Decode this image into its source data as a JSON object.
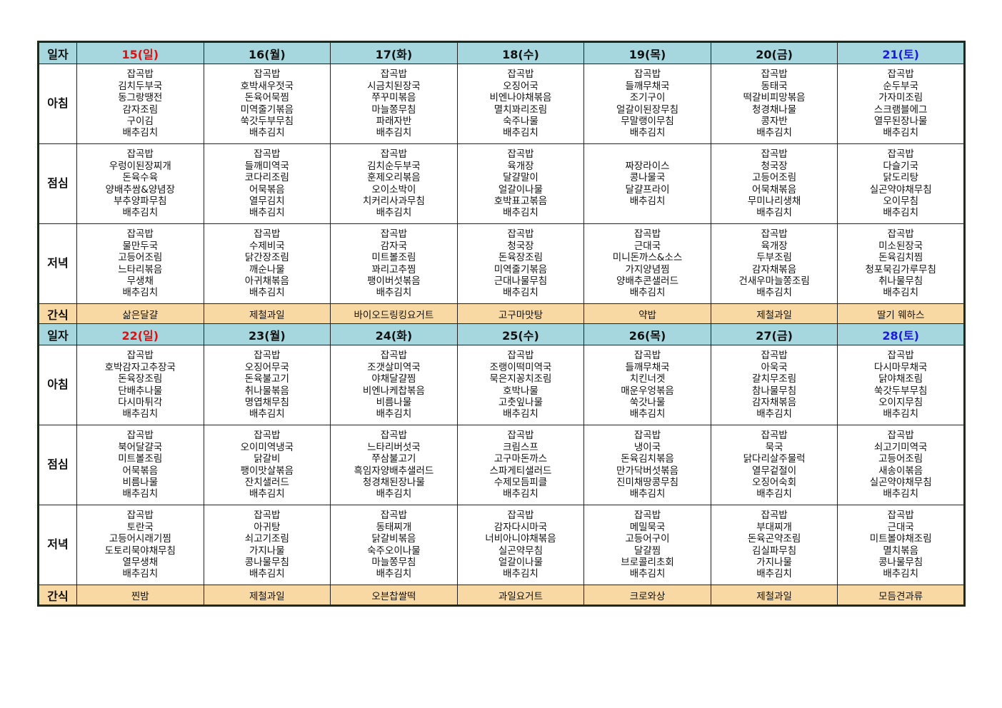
{
  "labels": {
    "date": "일자",
    "breakfast": "아침",
    "lunch": "점심",
    "dinner": "저녁",
    "snack": "간식"
  },
  "colors": {
    "sunday": "#e01010",
    "saturday": "#1a1ae0",
    "header_bg": "#a6d6de",
    "snack_bg": "#f9d9a3",
    "border": "#1c2b1c"
  },
  "weeks": [
    {
      "days": [
        "15(일)",
        "16(월)",
        "17(화)",
        "18(수)",
        "19(목)",
        "20(금)",
        "21(토)"
      ],
      "breakfast": [
        [
          "잡곡밥",
          "김치두부국",
          "동그랑땡전",
          "감자조림",
          "구이김",
          "배추김치"
        ],
        [
          "잡곡밥",
          "호박새우젓국",
          "돈육어묵찜",
          "미역줄기볶음",
          "쑥갓두부무침",
          "배추김치"
        ],
        [
          "잡곡밥",
          "시금치된장국",
          "쭈꾸미볶음",
          "마늘쫑무침",
          "파래자반",
          "배추김치"
        ],
        [
          "잡곡밥",
          "오징어국",
          "비엔나야채볶음",
          "멸치꽈리조림",
          "숙주나물",
          "배추김치"
        ],
        [
          "잡곡밥",
          "들깨무채국",
          "조기구이",
          "얼갈이된장무침",
          "무말랭이무침",
          "배추김치"
        ],
        [
          "잡곡밥",
          "동태국",
          "떡갈비피망볶음",
          "청경채나물",
          "콩자반",
          "배추김치"
        ],
        [
          "잡곡밥",
          "순두부국",
          "가자미조림",
          "스크램블에그",
          "열무된장나물",
          "배추김치"
        ]
      ],
      "lunch": [
        [
          "잡곡밥",
          "우렁이된장찌개",
          "돈육수육",
          "양배추쌈&양념장",
          "부추양파무침",
          "배추김치"
        ],
        [
          "잡곡밥",
          "들깨미역국",
          "코다리조림",
          "어묵볶음",
          "열무김치",
          "배추김치"
        ],
        [
          "잡곡밥",
          "김치순두부국",
          "훈제오리볶음",
          "오이소박이",
          "치커리사과무침",
          "배추김치"
        ],
        [
          "잡곡밥",
          "육개장",
          "달걀말이",
          "얼갈이나물",
          "호박표고볶음",
          "배추김치"
        ],
        [
          "짜장라이스",
          "콩나물국",
          "달걀프라이",
          "배추김치"
        ],
        [
          "잡곡밥",
          "청국장",
          "고등어조림",
          "어묵채볶음",
          "무미나리생채",
          "배추김치"
        ],
        [
          "잡곡밥",
          "다슬기국",
          "닭도리탕",
          "실곤약야채무침",
          "오이무침",
          "배추김치"
        ]
      ],
      "dinner": [
        [
          "잡곡밥",
          "물만두국",
          "고등어조림",
          "느타리볶음",
          "무생채",
          "배추김치"
        ],
        [
          "잡곡밥",
          "수제비국",
          "닭간장조림",
          "깨순나물",
          "아귀채볶음",
          "배추김치"
        ],
        [
          "잡곡밥",
          "감자국",
          "미트볼조림",
          "꽈리고추찜",
          "팽이버섯볶음",
          "배추김치"
        ],
        [
          "잡곡밥",
          "청국장",
          "돈육장조림",
          "미역줄기볶음",
          "근대나물무침",
          "배추김치"
        ],
        [
          "잡곡밥",
          "근대국",
          "미니돈까스&소스",
          "가지양념찜",
          "양배추콘샐러드",
          "배추김치"
        ],
        [
          "잡곡밥",
          "육개장",
          "두부조림",
          "감자채볶음",
          "건새우마늘쫑조림",
          "배추김치"
        ],
        [
          "잡곡밥",
          "미소된장국",
          "돈육김치찜",
          "청포묵김가루무침",
          "취나물무침",
          "배추김치"
        ]
      ],
      "snack": [
        "삶은달걀",
        "제철과일",
        "바이오드링킹요거트",
        "고구마맛탕",
        "약밥",
        "제철과일",
        "딸기 웨하스"
      ]
    },
    {
      "days": [
        "22(일)",
        "23(월)",
        "24(화)",
        "25(수)",
        "26(목)",
        "27(금)",
        "28(토)"
      ],
      "breakfast": [
        [
          "잡곡밥",
          "호박감자고추장국",
          "돈육장조림",
          "단배추나물",
          "다시마튀각",
          "배추김치"
        ],
        [
          "잡곡밥",
          "오징어무국",
          "돈육불고기",
          "취나물볶음",
          "명엽채무침",
          "배추김치"
        ],
        [
          "잡곡밥",
          "조갯살미역국",
          "야채달걀찜",
          "비엔나케찹볶음",
          "비름나물",
          "배추김치"
        ],
        [
          "잡곡밥",
          "조랭이떡미역국",
          "묵은지꽁치조림",
          "호박나물",
          "고춧잎나물",
          "배추김치"
        ],
        [
          "잡곡밥",
          "들깨무채국",
          "치킨너겟",
          "매운우엉볶음",
          "쑥갓나물",
          "배추김치"
        ],
        [
          "잡곡밥",
          "아욱국",
          "갈치무조림",
          "참나물무침",
          "감자채볶음",
          "배추김치"
        ],
        [
          "잡곡밥",
          "다시마무채국",
          "닭야채조림",
          "쑥갓두부무침",
          "오이지무침",
          "배추김치"
        ]
      ],
      "lunch": [
        [
          "잡곡밥",
          "북어달걀국",
          "미트볼조림",
          "어묵볶음",
          "비름나물",
          "배추김치"
        ],
        [
          "잡곡밥",
          "오이미역냉국",
          "닭갈비",
          "팽이맛살볶음",
          "잔치샐러드",
          "배추김치"
        ],
        [
          "잡곡밥",
          "느타리버섯국",
          "쭈삼불고기",
          "흑임자양배추샐러드",
          "청경채된장나물",
          "배추김치"
        ],
        [
          "잡곡밥",
          "크림스프",
          "고구마돈까스",
          "스파게티샐러드",
          "수제모듬피클",
          "배추김치"
        ],
        [
          "잡곡밥",
          "냉이국",
          "돈육김치볶음",
          "만가닥버섯볶음",
          "진미채땅콩무침",
          "배추김치"
        ],
        [
          "잡곡밥",
          "묵국",
          "닭다리살주물럭",
          "열무겉절이",
          "오징어숙회",
          "배추김치"
        ],
        [
          "잡곡밥",
          "쇠고기미역국",
          "고등어조림",
          "새송이볶음",
          "실곤약야채무침",
          "배추김치"
        ]
      ],
      "dinner": [
        [
          "잡곡밥",
          "토란국",
          "고등어시래기찜",
          "도토리묵야채무침",
          "열무생채",
          "배추김치"
        ],
        [
          "잡곡밥",
          "아귀탕",
          "쇠고기조림",
          "가지나물",
          "콩나물무침",
          "배추김치"
        ],
        [
          "잡곡밥",
          "동태찌개",
          "닭갈비볶음",
          "숙주오이나물",
          "마늘쫑무침",
          "배추김치"
        ],
        [
          "잡곡밥",
          "감자다시마국",
          "너비아니야채볶음",
          "실곤약무침",
          "얼갈이나물",
          "배추김치"
        ],
        [
          "잡곡밥",
          "메밀묵국",
          "고등어구이",
          "달걀찜",
          "브로콜리초회",
          "배추김치"
        ],
        [
          "잡곡밥",
          "부대찌개",
          "돈육곤약조림",
          "김실파무침",
          "가지나물",
          "배추김치"
        ],
        [
          "잡곡밥",
          "근대국",
          "미트볼야채조림",
          "멸치볶음",
          "콩나물무침",
          "배추김치"
        ]
      ],
      "snack": [
        "찐밤",
        "제철과일",
        "오븐찹쌀떡",
        "과일요거트",
        "크로와상",
        "제철과일",
        "모듬견과류"
      ]
    }
  ]
}
